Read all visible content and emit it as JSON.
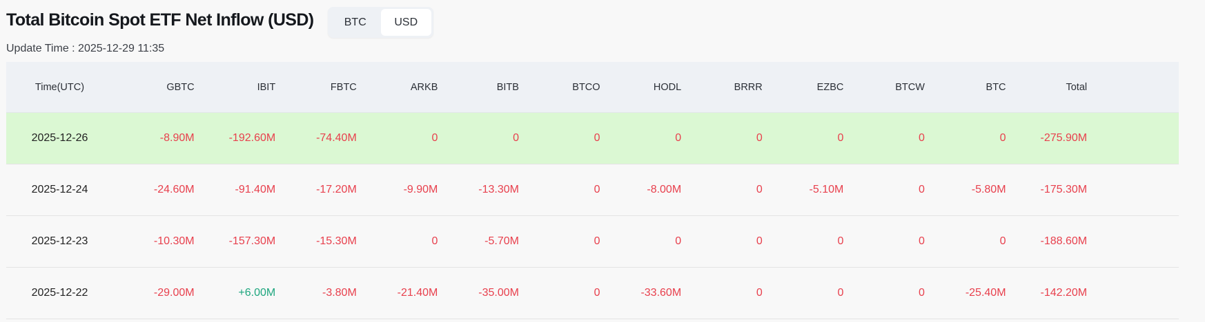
{
  "header": {
    "title": "Total Bitcoin Spot ETF Net Inflow (USD)",
    "update_time": "Update Time : 2025-12-29 11:35"
  },
  "currency_toggle": {
    "options": [
      "BTC",
      "USD"
    ],
    "selected": "USD"
  },
  "colors": {
    "negative": "#e8404d",
    "positive": "#1ea67e",
    "highlight_row": "#dbf8d3",
    "header_bg": "#eef1f5"
  },
  "table": {
    "columns": [
      "Time(UTC)",
      "GBTC",
      "IBIT",
      "FBTC",
      "ARKB",
      "BITB",
      "BTCO",
      "HODL",
      "BRRR",
      "EZBC",
      "BTCW",
      "BTC",
      "Total"
    ],
    "rows": [
      [
        "2025-12-26",
        "-8.90M",
        "-192.60M",
        "-74.40M",
        "0",
        "0",
        "0",
        "0",
        "0",
        "0",
        "0",
        "0",
        "-275.90M"
      ],
      [
        "2025-12-24",
        "-24.60M",
        "-91.40M",
        "-17.20M",
        "-9.90M",
        "-13.30M",
        "0",
        "-8.00M",
        "0",
        "-5.10M",
        "0",
        "-5.80M",
        "-175.30M"
      ],
      [
        "2025-12-23",
        "-10.30M",
        "-157.30M",
        "-15.30M",
        "0",
        "-5.70M",
        "0",
        "0",
        "0",
        "0",
        "0",
        "0",
        "-188.60M"
      ],
      [
        "2025-12-22",
        "-29.00M",
        "+6.00M",
        "-3.80M",
        "-21.40M",
        "-35.00M",
        "0",
        "-33.60M",
        "0",
        "0",
        "0",
        "-25.40M",
        "-142.20M"
      ]
    ]
  }
}
